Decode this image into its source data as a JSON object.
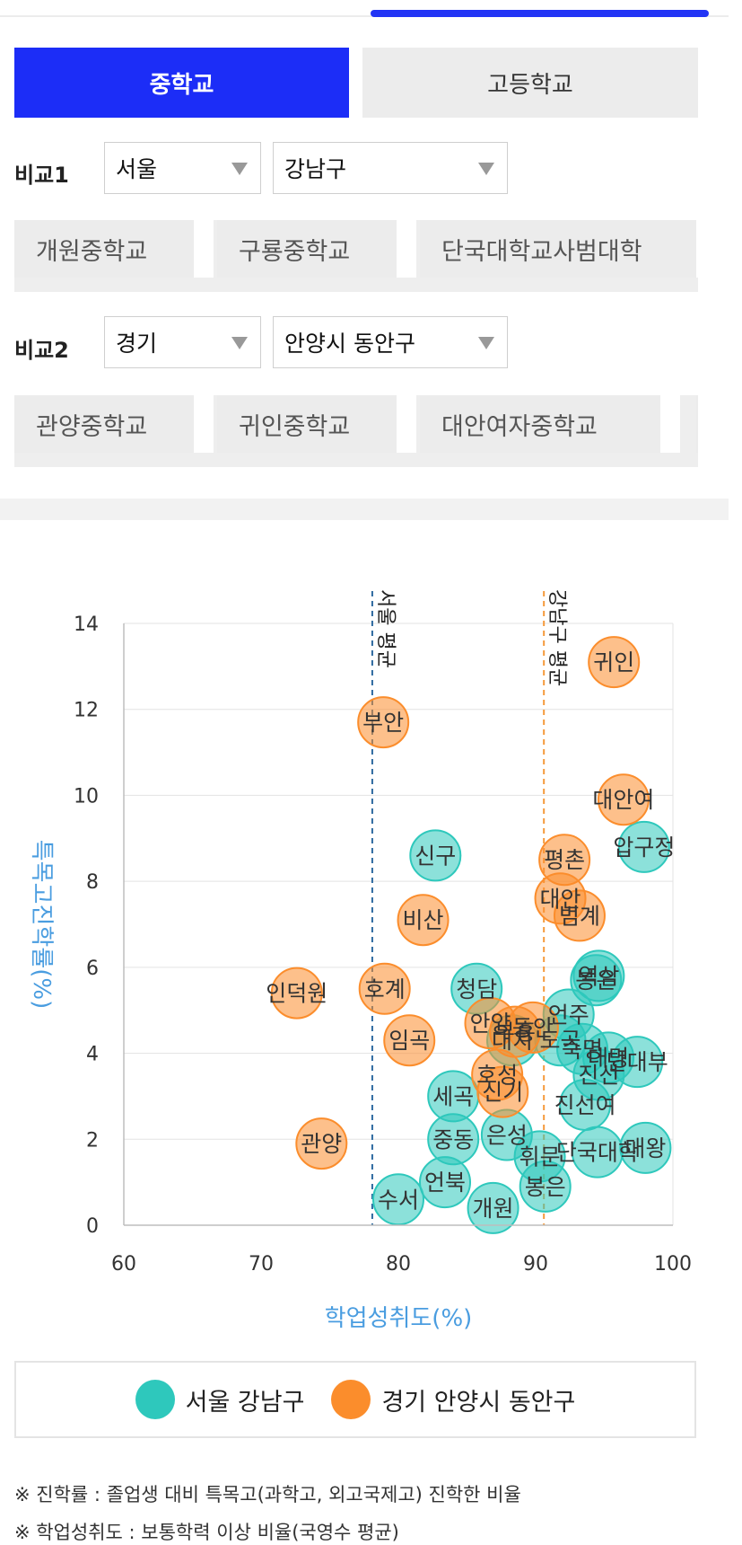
{
  "tabs": [
    {
      "label": "중학교",
      "active": true
    },
    {
      "label": "고등학교",
      "active": false
    }
  ],
  "compare1": {
    "label": "비교1",
    "region": "서울",
    "district": "강남구",
    "schools": [
      "개원중학교",
      "구룡중학교",
      "단국대학교사범대학"
    ]
  },
  "compare2": {
    "label": "비교2",
    "region": "경기",
    "district": "안양시 동안구",
    "schools": [
      "관양중학교",
      "귀인중학교",
      "대안여자중학교"
    ]
  },
  "chart_data": {
    "type": "scatter",
    "xlabel": "학업성취도(%)",
    "ylabel": "특목고진학률(%)",
    "xlim": [
      60,
      100
    ],
    "ylim": [
      0,
      14
    ],
    "xticks": [
      60,
      70,
      80,
      90,
      100
    ],
    "yticks": [
      0,
      2,
      4,
      6,
      8,
      10,
      12,
      14
    ],
    "grid": true,
    "reference_lines": [
      {
        "label": "서울 평균",
        "x": 78.1,
        "color": "#2e6aa0"
      },
      {
        "label": "강남구 평균",
        "x": 90.6,
        "color": "#f59a3c"
      }
    ],
    "series": [
      {
        "name": "서울 강남구",
        "color": "#2ec8bc",
        "points": [
          {
            "label": "압구정",
            "x": 97.9,
            "y": 8.8
          },
          {
            "label": "신구",
            "x": 82.7,
            "y": 8.6
          },
          {
            "label": "역삼",
            "x": 94.6,
            "y": 5.8
          },
          {
            "label": "봉은",
            "x": 94.4,
            "y": 5.7
          },
          {
            "label": "청담",
            "x": 85.7,
            "y": 5.5
          },
          {
            "label": "언주",
            "x": 92.4,
            "y": 4.9
          },
          {
            "label": "대치",
            "x": 88.3,
            "y": 4.3
          },
          {
            "label": "도곡",
            "x": 91.8,
            "y": 4.3
          },
          {
            "label": "숙명",
            "x": 93.4,
            "y": 4.1
          },
          {
            "label": "대명",
            "x": 95.3,
            "y": 3.9
          },
          {
            "label": "단대부",
            "x": 97.4,
            "y": 3.8
          },
          {
            "label": "진선",
            "x": 94.6,
            "y": 3.5
          },
          {
            "label": "세곡",
            "x": 84.0,
            "y": 3.0
          },
          {
            "label": "진선여",
            "x": 93.6,
            "y": 2.8
          },
          {
            "label": "중동",
            "x": 84.0,
            "y": 2.0
          },
          {
            "label": "은성",
            "x": 87.9,
            "y": 2.1
          },
          {
            "label": "휘문",
            "x": 90.3,
            "y": 1.6
          },
          {
            "label": "단국대학",
            "x": 94.5,
            "y": 1.7
          },
          {
            "label": "대왕",
            "x": 98.0,
            "y": 1.8
          },
          {
            "label": "언북",
            "x": 83.4,
            "y": 1.0
          },
          {
            "label": "봉은",
            "x": 90.7,
            "y": 0.9
          },
          {
            "label": "수서",
            "x": 80.0,
            "y": 0.6
          },
          {
            "label": "개원",
            "x": 86.9,
            "y": 0.4
          }
        ]
      },
      {
        "name": "경기 안양시 동안구",
        "color": "#fb8d2c",
        "points": [
          {
            "label": "귀인",
            "x": 95.7,
            "y": 13.1
          },
          {
            "label": "부안",
            "x": 78.9,
            "y": 11.7
          },
          {
            "label": "대안여",
            "x": 96.4,
            "y": 9.9
          },
          {
            "label": "평촌",
            "x": 92.1,
            "y": 8.5
          },
          {
            "label": "대안",
            "x": 91.8,
            "y": 7.6
          },
          {
            "label": "범계",
            "x": 93.2,
            "y": 7.2
          },
          {
            "label": "비산",
            "x": 81.8,
            "y": 7.1
          },
          {
            "label": "인덕원",
            "x": 72.6,
            "y": 5.4
          },
          {
            "label": "호계",
            "x": 79.0,
            "y": 5.5
          },
          {
            "label": "안양",
            "x": 86.7,
            "y": 4.7
          },
          {
            "label": "부흥",
            "x": 88.5,
            "y": 4.5
          },
          {
            "label": "동안",
            "x": 89.8,
            "y": 4.6
          },
          {
            "label": "임곡",
            "x": 80.8,
            "y": 4.3
          },
          {
            "label": "호성",
            "x": 87.2,
            "y": 3.5
          },
          {
            "label": "신기",
            "x": 87.6,
            "y": 3.1
          },
          {
            "label": "관양",
            "x": 74.4,
            "y": 1.9
          }
        ]
      }
    ]
  },
  "legend": [
    {
      "label": "서울 강남구",
      "color": "#2ec8bc"
    },
    {
      "label": "경기 안양시 동안구",
      "color": "#fb8d2c"
    }
  ],
  "notes": [
    "※ 진학률 : 졸업생 대비 특목고(과학고, 외고국제고) 진학한 비율",
    "※ 학업성취도 : 보통학력 이상 비율(국영수 평균)"
  ]
}
